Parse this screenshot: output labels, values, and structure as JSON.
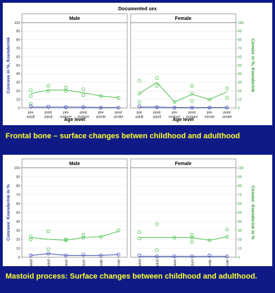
{
  "colors": {
    "background": "#0f1a86",
    "caption": "#ffff33",
    "convex": "#4ec24e",
    "concave": "#3d4fb8",
    "axis_right": "#2f9a2f",
    "axis_left": "#2b3a9a"
  },
  "top": {
    "caption": "Frontal bone – surface changes betwen childhood and adulthood"
  },
  "bottom": {
    "caption": "Mastoid process: Surface changes between childhood and adulthood."
  },
  "chart_data": [
    {
      "type": "line",
      "title": "Documented sex",
      "facets": [
        "Male",
        "Female"
      ],
      "xlabel": "Age level",
      "ylabel_left": "Concave in %, Koenderink",
      "ylabel_right": "Convex in %, Koenderink",
      "ylim": [
        0,
        100
      ],
      "yticks": [
        0,
        10,
        20,
        30,
        40,
        50,
        60,
        70,
        80,
        90,
        100
      ],
      "categories": [
        "pre adult",
        "post adult",
        "pre mature",
        "post mature",
        "pre senile",
        "post senile"
      ],
      "panels": [
        {
          "facet": "Male",
          "series": [
            {
              "axis": "convex",
              "values": [
                17,
                21,
                21,
                18,
                14,
                12
              ]
            },
            {
              "axis": "concave",
              "values": [
                1,
                1,
                1,
                1,
                0.5,
                0.5
              ]
            }
          ],
          "points": [
            {
              "axis": "convex",
              "x": 0,
              "y": 21
            },
            {
              "axis": "convex",
              "x": 0,
              "y": 14
            },
            {
              "axis": "convex",
              "x": 0,
              "y": 5
            },
            {
              "axis": "convex",
              "x": 1,
              "y": 26
            },
            {
              "axis": "convex",
              "x": 1,
              "y": 20
            },
            {
              "axis": "convex",
              "x": 2,
              "y": 24
            },
            {
              "axis": "convex",
              "x": 2,
              "y": 20
            },
            {
              "axis": "convex",
              "x": 3,
              "y": 22
            },
            {
              "axis": "convex",
              "x": 3,
              "y": 15
            },
            {
              "axis": "convex",
              "x": 4,
              "y": 14
            },
            {
              "axis": "convex",
              "x": 5,
              "y": 12
            },
            {
              "axis": "concave",
              "x": 0,
              "y": 2
            },
            {
              "axis": "concave",
              "x": 1,
              "y": 1.5
            },
            {
              "axis": "concave",
              "x": 2,
              "y": 1
            },
            {
              "axis": "concave",
              "x": 3,
              "y": 1
            },
            {
              "axis": "concave",
              "x": 4,
              "y": 0.5
            },
            {
              "axis": "concave",
              "x": 5,
              "y": 0.5
            }
          ]
        },
        {
          "facet": "Female",
          "series": [
            {
              "axis": "convex",
              "values": [
                17,
                30,
                7,
                16,
                10,
                19
              ]
            },
            {
              "axis": "concave",
              "values": [
                1,
                1,
                0.5,
                0.5,
                0.5,
                0.5
              ]
            }
          ],
          "points": [
            {
              "axis": "convex",
              "x": 0,
              "y": 32
            },
            {
              "axis": "convex",
              "x": 0,
              "y": 17
            },
            {
              "axis": "convex",
              "x": 0,
              "y": 7
            },
            {
              "axis": "convex",
              "x": 1,
              "y": 35
            },
            {
              "axis": "convex",
              "x": 1,
              "y": 26
            },
            {
              "axis": "convex",
              "x": 2,
              "y": 7
            },
            {
              "axis": "convex",
              "x": 3,
              "y": 26
            },
            {
              "axis": "convex",
              "x": 3,
              "y": 17
            },
            {
              "axis": "convex",
              "x": 3,
              "y": 8
            },
            {
              "axis": "convex",
              "x": 4,
              "y": 10
            },
            {
              "axis": "convex",
              "x": 5,
              "y": 23
            },
            {
              "axis": "convex",
              "x": 5,
              "y": 12
            },
            {
              "axis": "concave",
              "x": 0,
              "y": 2
            },
            {
              "axis": "concave",
              "x": 1,
              "y": 1
            },
            {
              "axis": "concave",
              "x": 2,
              "y": 0.5
            },
            {
              "axis": "concave",
              "x": 3,
              "y": 0.5
            },
            {
              "axis": "concave",
              "x": 4,
              "y": 0.5
            },
            {
              "axis": "concave",
              "x": 5,
              "y": 0.5
            }
          ]
        }
      ]
    },
    {
      "type": "line",
      "title": "",
      "facets": [
        "Male",
        "Female"
      ],
      "xlabel": "",
      "ylabel_left": "Concave: Koenderink in %",
      "ylabel_right": "Convex: Koenderink in %",
      "ylim": [
        0,
        100
      ],
      "yticks": [
        0,
        10,
        20,
        30,
        40,
        50,
        60,
        70,
        80,
        90,
        100
      ],
      "categories": [
        "pre adult",
        "post adult",
        "pre mature",
        "post mature",
        "pre senile",
        "post senile"
      ],
      "panels": [
        {
          "facet": "Male",
          "series": [
            {
              "axis": "convex",
              "values": [
                22,
                20,
                19,
                22,
                23,
                29
              ]
            },
            {
              "axis": "concave",
              "values": [
                2,
                4,
                2,
                2,
                2,
                3
              ]
            }
          ],
          "points": [
            {
              "axis": "convex",
              "x": 0,
              "y": 23
            },
            {
              "axis": "convex",
              "x": 0,
              "y": 20
            },
            {
              "axis": "convex",
              "x": 1,
              "y": 29
            },
            {
              "axis": "convex",
              "x": 1,
              "y": 9
            },
            {
              "axis": "convex",
              "x": 2,
              "y": 19
            },
            {
              "axis": "convex",
              "x": 2,
              "y": 20
            },
            {
              "axis": "convex",
              "x": 3,
              "y": 25
            },
            {
              "axis": "convex",
              "x": 3,
              "y": 22
            },
            {
              "axis": "convex",
              "x": 4,
              "y": 23
            },
            {
              "axis": "convex",
              "x": 5,
              "y": 30
            },
            {
              "axis": "concave",
              "x": 0,
              "y": 2
            },
            {
              "axis": "concave",
              "x": 1,
              "y": 4
            },
            {
              "axis": "concave",
              "x": 2,
              "y": 2
            },
            {
              "axis": "concave",
              "x": 3,
              "y": 3
            },
            {
              "axis": "concave",
              "x": 4,
              "y": 2
            },
            {
              "axis": "concave",
              "x": 5,
              "y": 3
            }
          ]
        },
        {
          "facet": "Female",
          "series": [
            {
              "axis": "convex",
              "values": [
                22,
                22,
                22,
                22,
                19,
                23
              ]
            },
            {
              "axis": "concave",
              "values": [
                1,
                1,
                1,
                1,
                1,
                1
              ]
            }
          ],
          "points": [
            {
              "axis": "convex",
              "x": 0,
              "y": 28
            },
            {
              "axis": "convex",
              "x": 0,
              "y": 21
            },
            {
              "axis": "convex",
              "x": 1,
              "y": 37
            },
            {
              "axis": "convex",
              "x": 1,
              "y": 8
            },
            {
              "axis": "convex",
              "x": 2,
              "y": 22
            },
            {
              "axis": "convex",
              "x": 3,
              "y": 25
            },
            {
              "axis": "convex",
              "x": 3,
              "y": 22
            },
            {
              "axis": "convex",
              "x": 3,
              "y": 17
            },
            {
              "axis": "convex",
              "x": 4,
              "y": 19
            },
            {
              "axis": "convex",
              "x": 5,
              "y": 31
            },
            {
              "axis": "convex",
              "x": 5,
              "y": 23
            },
            {
              "axis": "concave",
              "x": 0,
              "y": 2
            },
            {
              "axis": "concave",
              "x": 1,
              "y": 1
            },
            {
              "axis": "concave",
              "x": 2,
              "y": 1
            },
            {
              "axis": "concave",
              "x": 3,
              "y": 1
            },
            {
              "axis": "concave",
              "x": 4,
              "y": 2
            },
            {
              "axis": "concave",
              "x": 5,
              "y": 1
            }
          ]
        }
      ]
    }
  ]
}
